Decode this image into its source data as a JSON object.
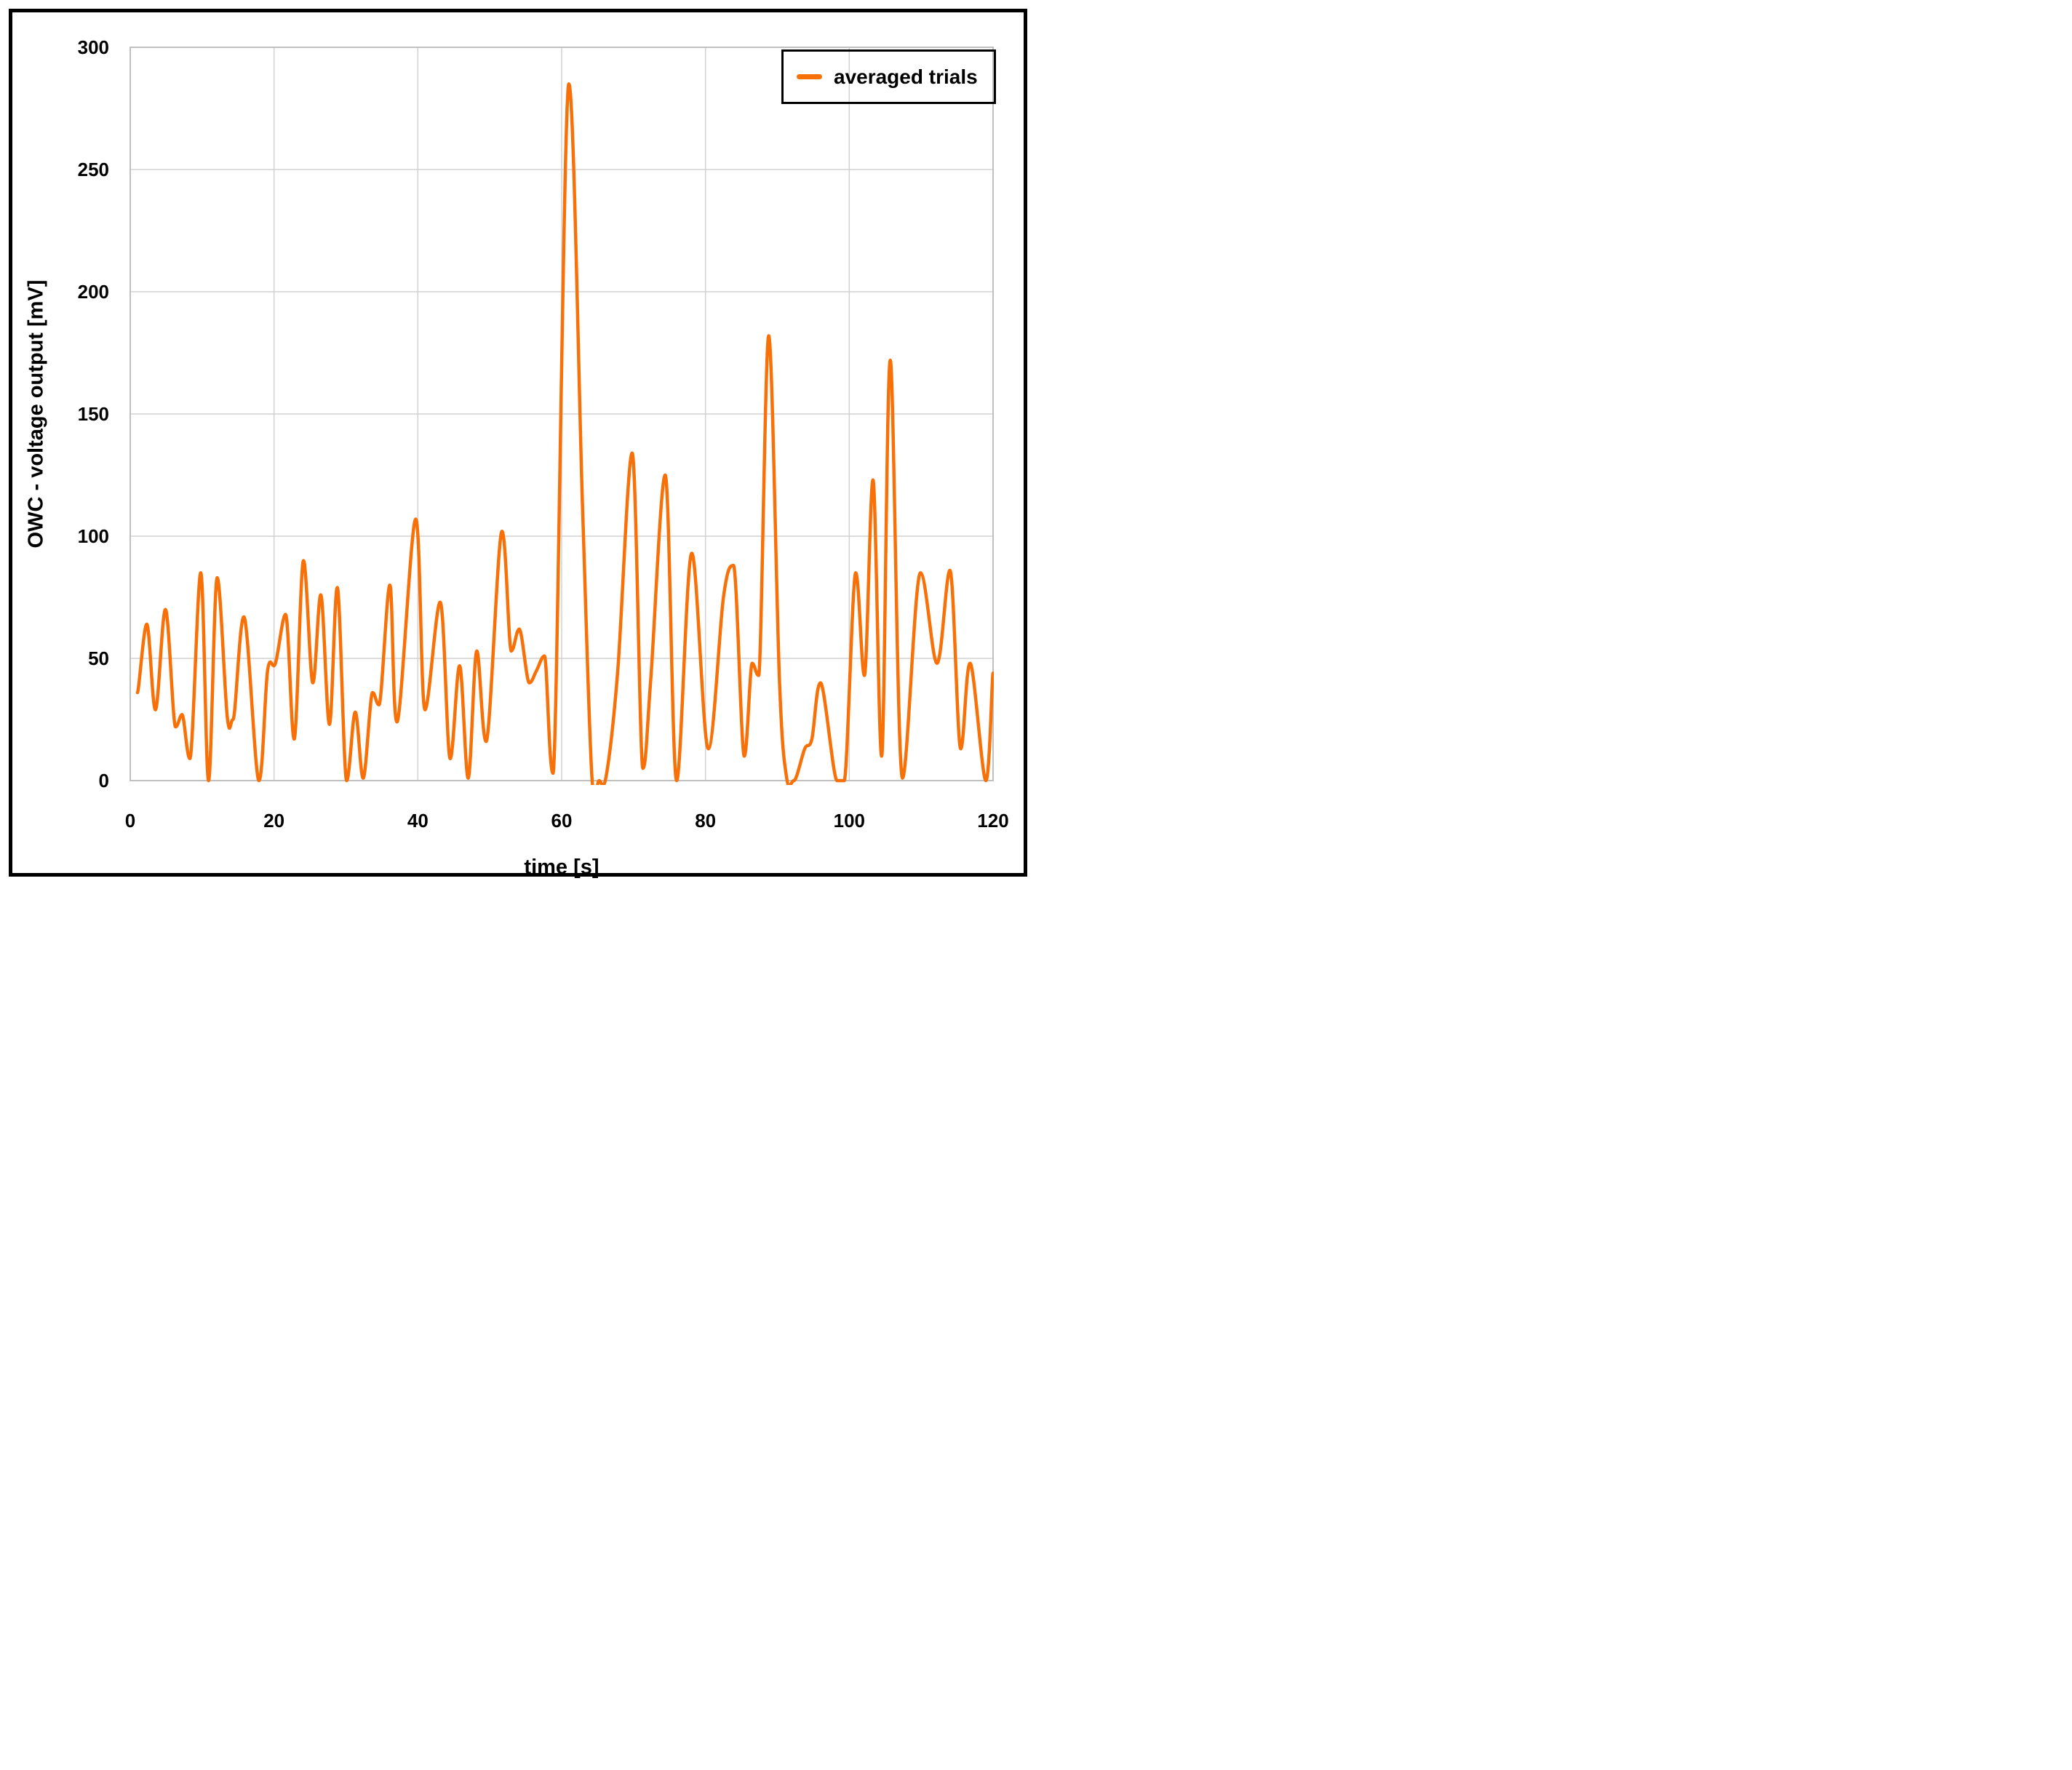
{
  "chart_data": {
    "type": "line",
    "title": "",
    "xlabel": "time [s]",
    "ylabel": "OWC - voltage output [mV]",
    "xlim": [
      0,
      120
    ],
    "ylim": [
      0,
      300
    ],
    "xticks": [
      0,
      20,
      40,
      60,
      80,
      100,
      120
    ],
    "yticks": [
      0,
      50,
      100,
      150,
      200,
      250,
      300
    ],
    "grid": true,
    "legend_position": "top-right",
    "line_color": "#f87108",
    "gridline_color": "#d2d2d2",
    "frame_color": "#c0c0c0",
    "series": [
      {
        "name": "averaged trials",
        "x": [
          1,
          2.3,
          3.5,
          4.9,
          6.3,
          7.2,
          8.3,
          9.8,
          10.9,
          12.1,
          13.5,
          14.3,
          15.8,
          17.9,
          19.1,
          20.2,
          21.6,
          22.8,
          24.1,
          25.4,
          26.5,
          27.7,
          28.8,
          30.1,
          31.3,
          32.4,
          33.7,
          34.6,
          36.1,
          37.1,
          39.7,
          41.0,
          43.1,
          44.5,
          45.8,
          47.0,
          48.2,
          49.5,
          51.7,
          53.0,
          54.1,
          55.5,
          56.5,
          57.6,
          58.8,
          61.0,
          62.9,
          64.2,
          65.2,
          66.2,
          67.8,
          69.8,
          71.3,
          72.4,
          74.4,
          76.0,
          78.1,
          80.4,
          82.5,
          83.9,
          85.4,
          86.5,
          87.4,
          88.8,
          90.3,
          91.3,
          92.3,
          93.8,
          94.8,
          96.0,
          98.3,
          99.3,
          100.9,
          102.1,
          103.3,
          104.5,
          105.7,
          107.4,
          109.9,
          112.2,
          114.0,
          115.5,
          116.8,
          119.0,
          120
        ],
        "y": [
          36,
          64,
          29,
          70,
          22,
          27,
          9,
          85,
          0,
          83,
          26,
          25,
          67,
          0,
          45,
          48,
          68,
          17,
          90,
          40,
          76,
          23,
          79,
          0,
          28,
          1,
          36,
          31,
          80,
          24,
          107,
          29,
          73,
          9,
          47,
          1,
          53,
          16,
          102,
          53,
          62,
          40,
          45,
          51,
          3,
          285,
          112,
          2,
          0,
          2,
          45,
          134,
          5,
          42,
          125,
          0,
          93,
          13,
          75,
          88,
          10,
          48,
          43,
          182,
          40,
          1,
          0,
          13,
          17,
          40,
          0,
          0,
          85,
          43,
          123,
          10,
          172,
          1,
          85,
          48,
          86,
          13,
          48,
          0,
          44
        ]
      }
    ]
  }
}
